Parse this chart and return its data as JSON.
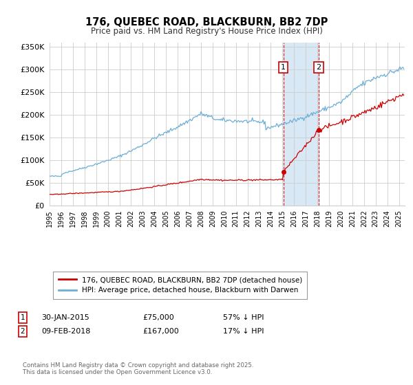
{
  "title": "176, QUEBEC ROAD, BLACKBURN, BB2 7DP",
  "subtitle": "Price paid vs. HM Land Registry's House Price Index (HPI)",
  "ylabel_ticks": [
    "£0",
    "£50K",
    "£100K",
    "£150K",
    "£200K",
    "£250K",
    "£300K",
    "£350K"
  ],
  "ytick_values": [
    0,
    50000,
    100000,
    150000,
    200000,
    250000,
    300000,
    350000
  ],
  "ylim": [
    0,
    360000
  ],
  "xlim_start": 1995.0,
  "xlim_end": 2025.5,
  "hpi_color": "#6baed6",
  "price_color": "#cc0000",
  "sale1_date": 2015.08,
  "sale1_price": 75000,
  "sale1_label": "1",
  "sale2_date": 2018.12,
  "sale2_price": 167000,
  "sale2_label": "2",
  "highlight_color": "#d9e8f5",
  "vline_color": "#cc0000",
  "legend_line1": "176, QUEBEC ROAD, BLACKBURN, BB2 7DP (detached house)",
  "legend_line2": "HPI: Average price, detached house, Blackburn with Darwen",
  "footer": "Contains HM Land Registry data © Crown copyright and database right 2025.\nThis data is licensed under the Open Government Licence v3.0.",
  "background_color": "#ffffff",
  "grid_color": "#cccccc",
  "label_box_color": "#cc0000"
}
